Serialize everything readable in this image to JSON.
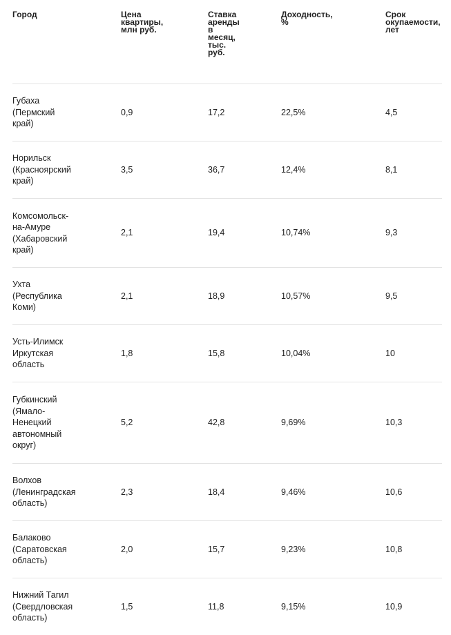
{
  "table": {
    "headers": [
      "Город",
      "Цена\nквартиры,\nмлн руб.",
      "Ставка\nаренды\nв\nмесяц,\nтыс.\nруб.",
      "Доходность,\n%",
      "Срок\nокупаемости,\nлет"
    ],
    "rows": [
      {
        "city": "Губаха\n(Пермский\nкрай)",
        "price": "0,9",
        "rent": "17,2",
        "yield": "22,5%",
        "payback": "4,5"
      },
      {
        "city": "Норильск\n(Красноярский\nкрай)",
        "price": "3,5",
        "rent": "36,7",
        "yield": "12,4%",
        "payback": "8,1"
      },
      {
        "city": "Комсомольск-\nна-Амуре\n(Хабаровский\nкрай)",
        "price": "2,1",
        "rent": "19,4",
        "yield": "10,74%",
        "payback": "9,3"
      },
      {
        "city": "Ухта\n(Республика\nКоми)",
        "price": "2,1",
        "rent": "18,9",
        "yield": "10,57%",
        "payback": "9,5"
      },
      {
        "city": "Усть-Илимск\nИркутская\nобласть",
        "price": "1,8",
        "rent": "15,8",
        "yield": "10,04%",
        "payback": "10"
      },
      {
        "city": "Губкинский\n(Ямало-\nНенецкий\nавтономный\nокруг)",
        "price": "5,2",
        "rent": "42,8",
        "yield": "9,69%",
        "payback": "10,3"
      },
      {
        "city": "Волхов\n(Ленинградская\nобласть)",
        "price": "2,3",
        "rent": "18,4",
        "yield": "9,46%",
        "payback": "10,6"
      },
      {
        "city": "Балаково\n(Саратовская\nобласть)",
        "price": "2,0",
        "rent": "15,7",
        "yield": "9,23%",
        "payback": "10,8"
      },
      {
        "city": "Нижний Тагил\n(Свердловская\nобласть)",
        "price": "1,5",
        "rent": "11,8",
        "yield": "9,15%",
        "payback": "10,9"
      }
    ]
  }
}
